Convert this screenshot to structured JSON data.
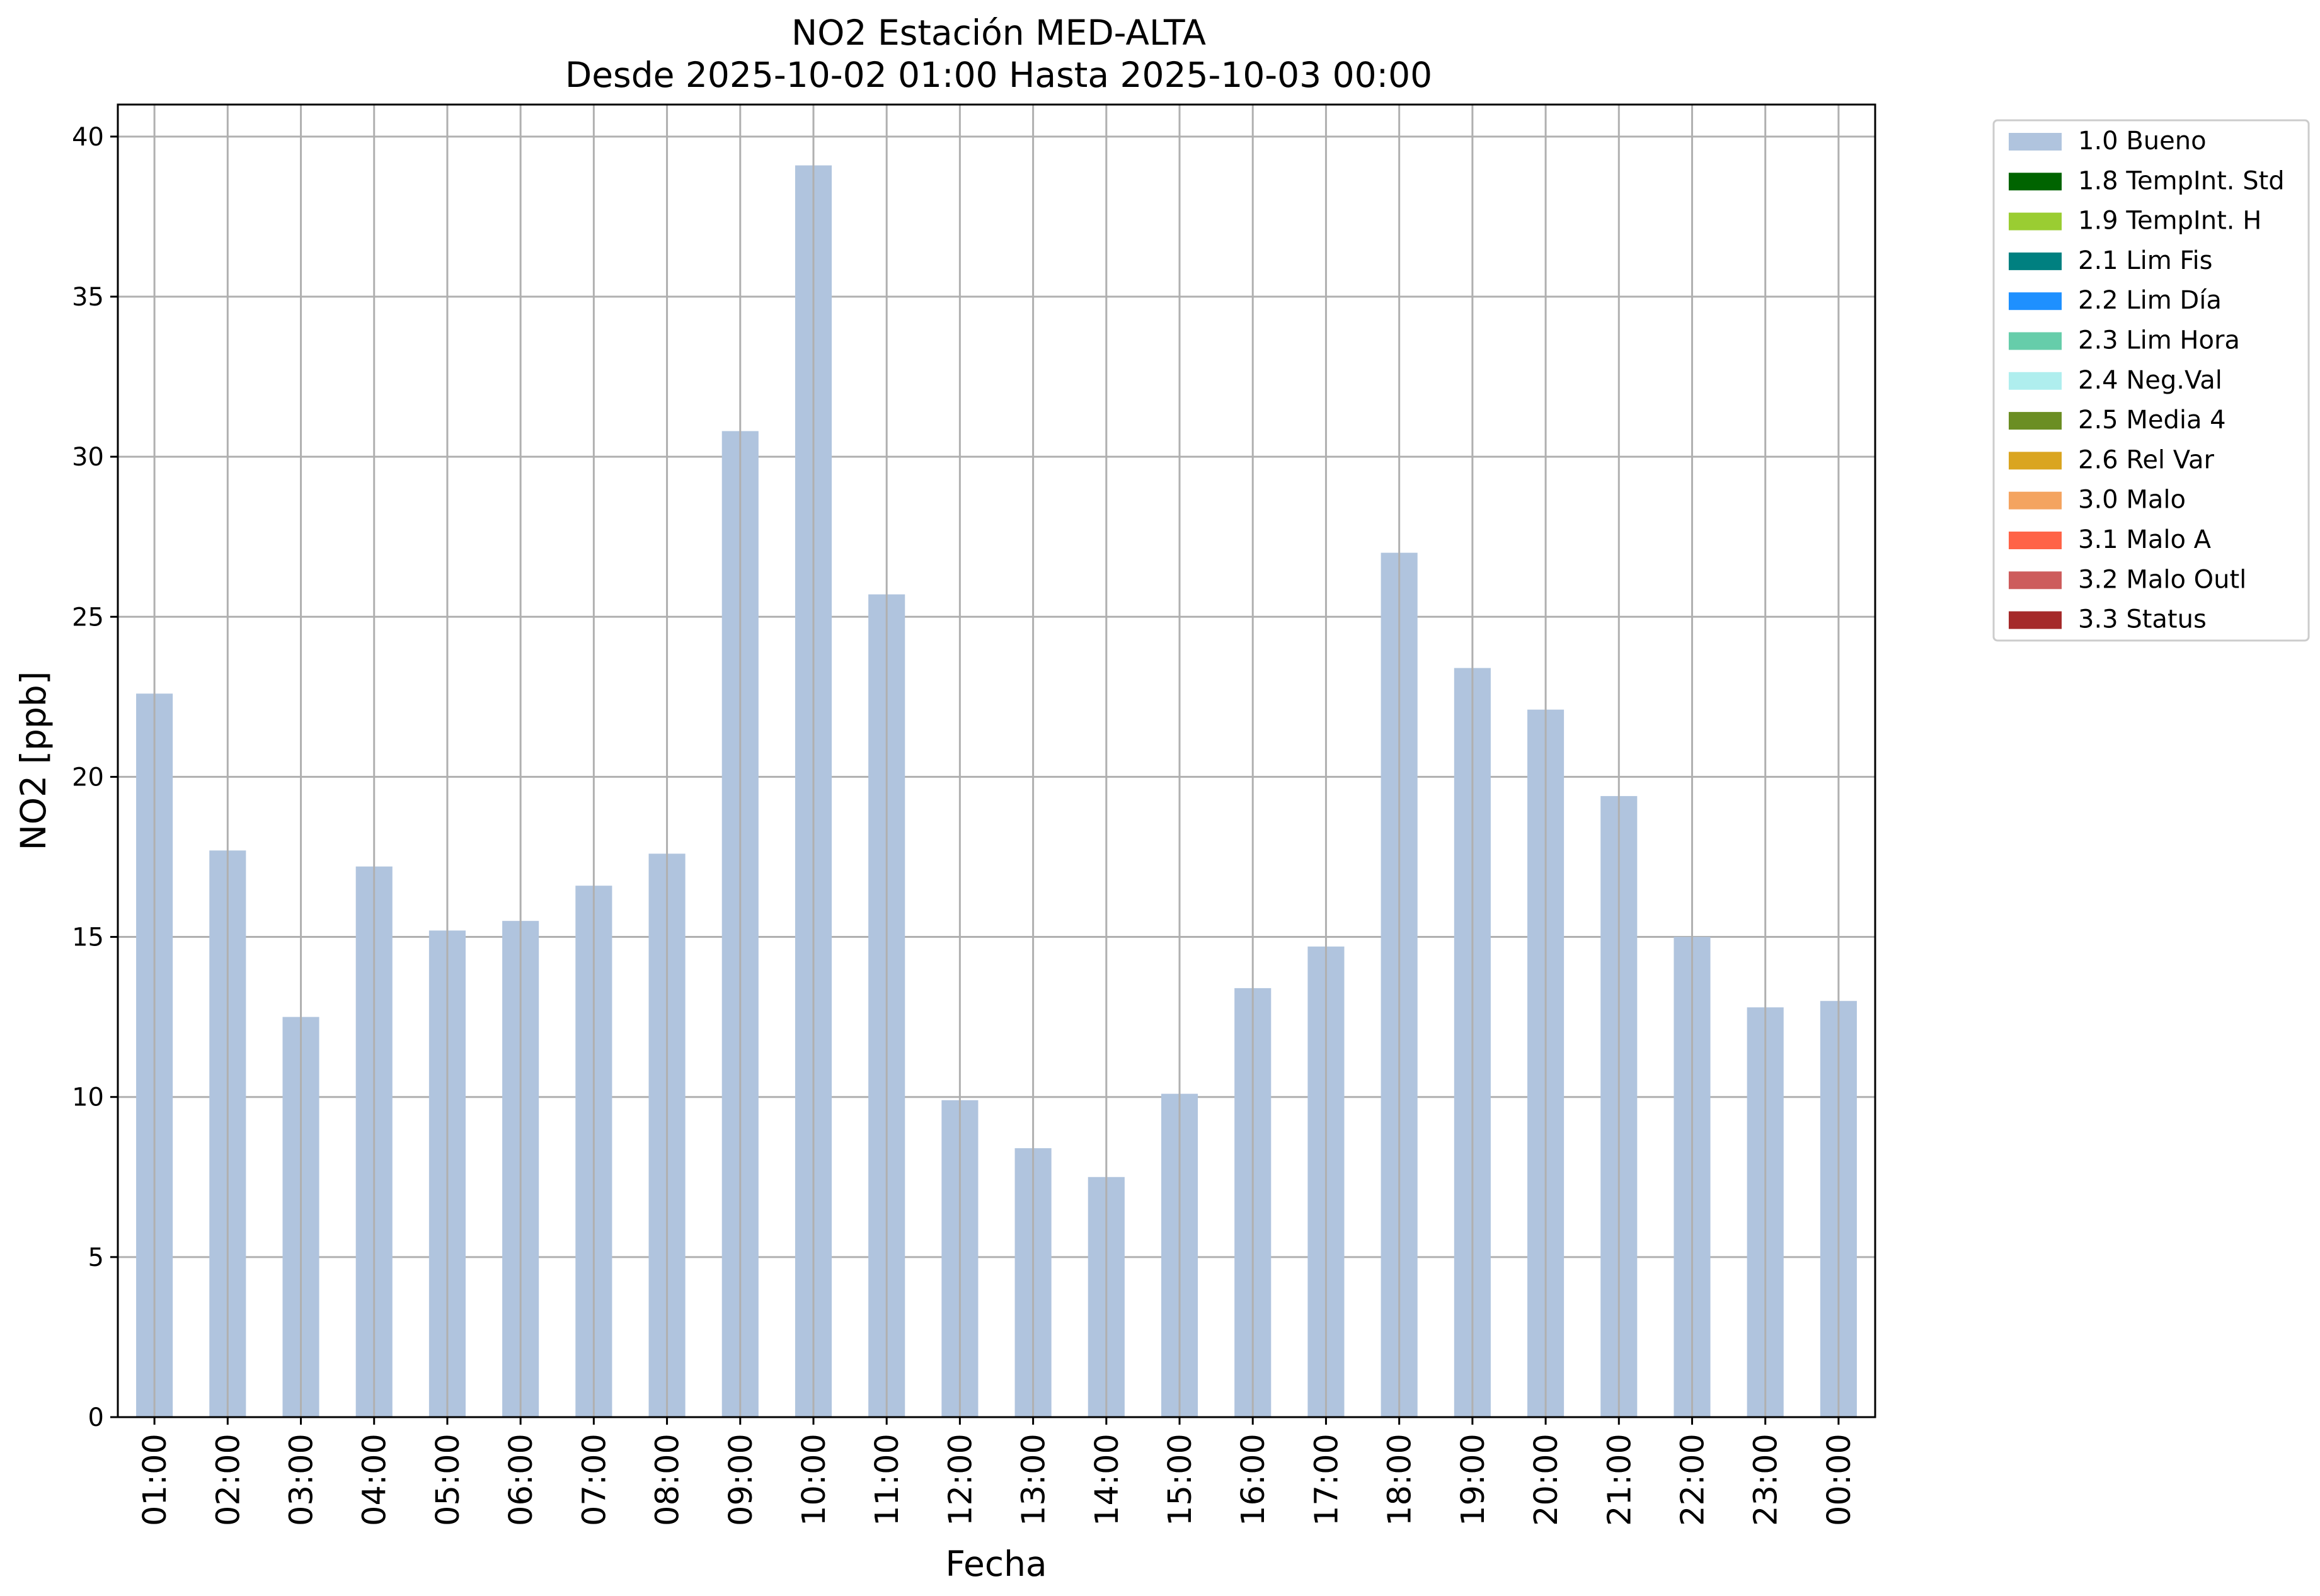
{
  "chart_data": {
    "type": "bar",
    "title": "NO2 Estación MED-ALTA",
    "subtitle": "Desde 2025-10-02 01:00 Hasta 2025-10-03 00:00",
    "xlabel": "Fecha",
    "ylabel": "NO2 [ppb]",
    "ylim": [
      0,
      41
    ],
    "yticks": [
      0,
      5,
      10,
      15,
      20,
      25,
      30,
      35,
      40
    ],
    "grid": true,
    "legend_position": "outside-right-top",
    "categories": [
      "01:00",
      "02:00",
      "03:00",
      "04:00",
      "05:00",
      "06:00",
      "07:00",
      "08:00",
      "09:00",
      "10:00",
      "11:00",
      "12:00",
      "13:00",
      "14:00",
      "15:00",
      "16:00",
      "17:00",
      "18:00",
      "19:00",
      "20:00",
      "21:00",
      "22:00",
      "23:00",
      "00:00"
    ],
    "series": [
      {
        "name": "1.0 Bueno",
        "color": "#b0c4de",
        "values": [
          22.6,
          17.7,
          12.5,
          17.2,
          15.2,
          15.5,
          16.6,
          17.6,
          30.8,
          39.1,
          25.7,
          9.9,
          8.4,
          7.5,
          10.1,
          13.4,
          14.7,
          27.0,
          23.4,
          22.1,
          19.4,
          15.0,
          12.8,
          13.0
        ]
      }
    ],
    "legend": [
      {
        "label": "1.0 Bueno",
        "color": "#b0c4de"
      },
      {
        "label": "1.8 TempInt. Std",
        "color": "#006400"
      },
      {
        "label": "1.9 TempInt. H",
        "color": "#9acd32"
      },
      {
        "label": "2.1 Lim Fis",
        "color": "#008080"
      },
      {
        "label": "2.2 Lim Día",
        "color": "#1e90ff"
      },
      {
        "label": "2.3 Lim Hora",
        "color": "#66cdaa"
      },
      {
        "label": "2.4 Neg.Val",
        "color": "#afeeee"
      },
      {
        "label": "2.5 Media 4",
        "color": "#6b8e23"
      },
      {
        "label": "2.6 Rel Var",
        "color": "#daa520"
      },
      {
        "label": "3.0 Malo",
        "color": "#f4a460"
      },
      {
        "label": "3.1 Malo A",
        "color": "#ff6347"
      },
      {
        "label": "3.2 Malo Outl",
        "color": "#cd5c5c"
      },
      {
        "label": "3.3 Status",
        "color": "#a52a2a"
      }
    ]
  }
}
